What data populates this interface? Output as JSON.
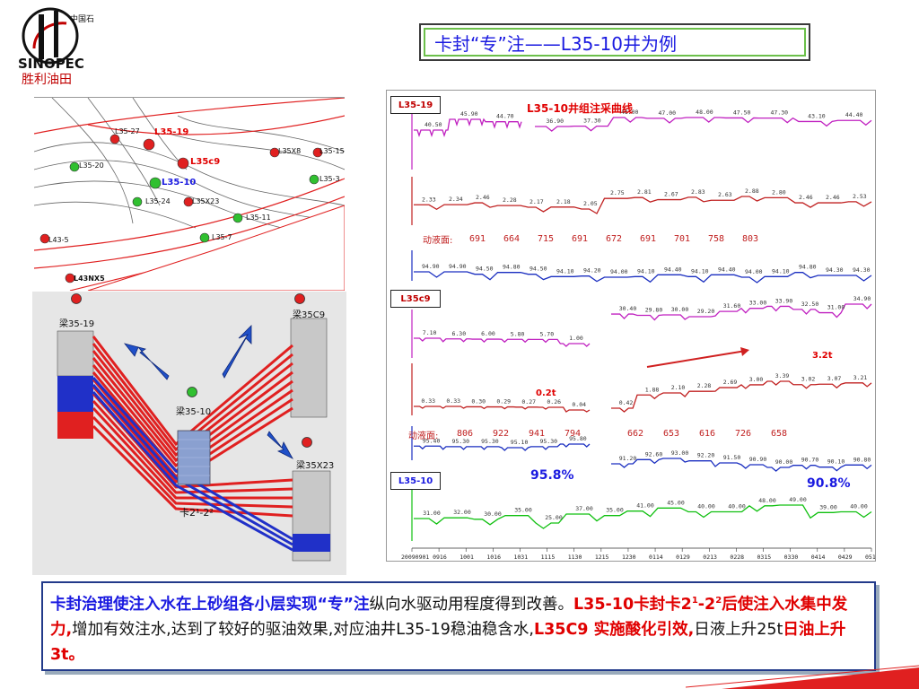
{
  "logo": {
    "chinese": "中国石化",
    "latin": "SINOPEC",
    "brand": "胜利油田"
  },
  "slide": {
    "title": "卡封“专”注——L35-10井为例"
  },
  "map": {
    "wells": [
      {
        "name": "L35-19",
        "type": "producer",
        "highlight": true
      },
      {
        "name": "L35c9",
        "type": "producer",
        "highlight": true
      },
      {
        "name": "L35-10",
        "type": "injector",
        "highlight": true
      },
      {
        "name": "L35-27",
        "type": "producer"
      },
      {
        "name": "L35-20",
        "type": "injector"
      },
      {
        "name": "L35-24",
        "type": "injector"
      },
      {
        "name": "L35X23",
        "type": "producer"
      },
      {
        "name": "L35-11",
        "type": "injector"
      },
      {
        "name": "L35-7",
        "type": "injector"
      },
      {
        "name": "L35X8",
        "type": "producer"
      },
      {
        "name": "L35-15",
        "type": "producer"
      },
      {
        "name": "L35-3",
        "type": "injector"
      },
      {
        "name": "L43-5",
        "type": "producer"
      },
      {
        "name": "L43NX5",
        "type": "producer"
      }
    ]
  },
  "section": {
    "wells": [
      "梁35-19",
      "梁35C9",
      "梁35-10",
      "梁35X23"
    ],
    "zone_label": "卡2¹-2²"
  },
  "curves": {
    "heading": "L35-10井组注采曲线",
    "tags": [
      "L35-19",
      "L35c9",
      "L35-10"
    ],
    "fluid_label": "动液面:",
    "l35_19": {
      "water_cut": [
        "40.50",
        "45.90",
        "44.70",
        "36.90",
        "37.30",
        "48.00",
        "47.00",
        "48.00",
        "47.50",
        "47.30",
        "43.10",
        "44.40"
      ],
      "oil": [
        "2.33",
        "2.34",
        "2.46",
        "2.28",
        "2.17",
        "2.18",
        "2.05",
        "2.75",
        "2.81",
        "2.67",
        "2.83",
        "2.63",
        "2.88",
        "2.80",
        "2.46",
        "2.46",
        "2.53"
      ],
      "fluid_level": [
        "691",
        "664",
        "715",
        "691",
        "672",
        "691",
        "701",
        "758",
        "803"
      ],
      "liquid": [
        "94.90",
        "94.90",
        "94.50",
        "94.80",
        "94.50",
        "94.10",
        "94.20",
        "94.00",
        "94.10",
        "94.40",
        "94.10",
        "94.40",
        "94.00",
        "94.10",
        "94.80",
        "94.30",
        "94.30"
      ]
    },
    "l35c9": {
      "water_cut_left": [
        "7.10",
        "6.30",
        "6.00",
        "5.80",
        "5.70",
        "1.00"
      ],
      "water_cut_right": [
        "30.40",
        "29.80",
        "30.00",
        "29.20",
        "31.60",
        "33.00",
        "33.90",
        "32.50",
        "31.00",
        "34.90"
      ],
      "oil_left": [
        "0.33",
        "0.33",
        "0.30",
        "0.29",
        "0.27",
        "0.26",
        "0.04"
      ],
      "oil_right": [
        "0.42",
        "1.88",
        "2.10",
        "2.28",
        "2.69",
        "3.00",
        "3.39",
        "3.02",
        "3.07",
        "3.21"
      ],
      "fluid_level": [
        "806",
        "922",
        "941",
        "794",
        "662",
        "653",
        "616",
        "726",
        "658"
      ],
      "liquid_left": [
        "95.40",
        "95.30",
        "95.30",
        "95.10",
        "95.30",
        "95.80"
      ],
      "liquid_right": [
        "91.20",
        "92.60",
        "93.00",
        "92.20",
        "91.50",
        "90.90",
        "90.00",
        "90.70",
        "90.10",
        "90.80"
      ],
      "annot_low": "0.2t",
      "annot_high": "3.2t",
      "wc_before": "95.8%",
      "wc_after": "90.8%"
    },
    "l35_10": {
      "injection": [
        "31.00",
        "32.00",
        "30.00",
        "35.00",
        "25.00",
        "37.00",
        "35.00",
        "41.00",
        "45.00",
        "40.00",
        "40.00",
        "48.00",
        "49.00",
        "39.00",
        "40.00"
      ]
    },
    "x_ticks": [
      "20090901",
      "0916",
      "1001",
      "1016",
      "1031",
      "1115",
      "1130",
      "1215",
      "1230",
      "0114",
      "0129",
      "0213",
      "0228",
      "0315",
      "0330",
      "0414",
      "0429",
      "0514"
    ]
  },
  "note": {
    "p1": "卡封治理使注入水在上砂组各小层实现“专”注",
    "p2": "纵向水驱动用程度得到改善。",
    "p3": "L35-10卡封卡2",
    "sup1": "1",
    "p4": "-2",
    "sup2": "2",
    "p5": "后使注入水集中发力,",
    "p6": "增加有效注水,达到了较好的驱油效果,对应油井L35-19稳油稳含水,",
    "p7": "L35C9 实施酸化引效,",
    "p8": "日液上升25t",
    "p9": "日油上升3t。"
  },
  "colors": {
    "title": "#1a1ae0",
    "accent_red": "#e00000",
    "water_cut": "#c020c0",
    "oil": "#c02020",
    "liquid": "#1a2ec0",
    "injection": "#10c010"
  }
}
